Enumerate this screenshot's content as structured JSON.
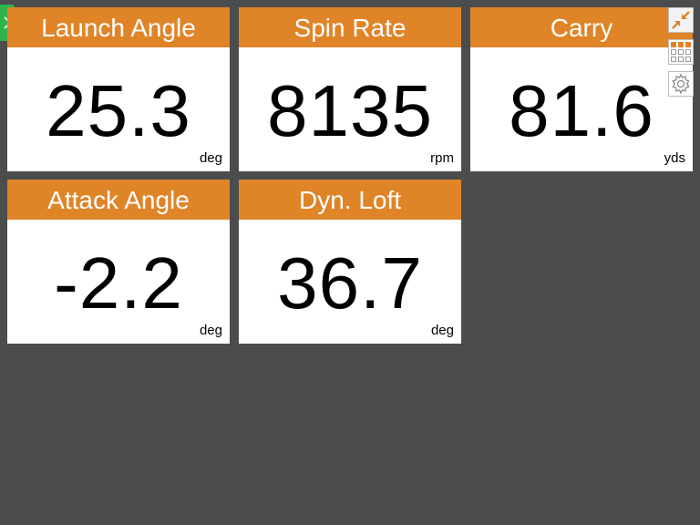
{
  "tiles": [
    {
      "title": "Launch Angle",
      "value": "25.3",
      "unit": "deg"
    },
    {
      "title": "Spin Rate",
      "value": "8135",
      "unit": "rpm"
    },
    {
      "title": "Carry",
      "value": "81.6",
      "unit": "yds"
    },
    {
      "title": "Attack Angle",
      "value": "-2.2",
      "unit": "deg"
    },
    {
      "title": "Dyn. Loft",
      "value": "36.7",
      "unit": "deg"
    }
  ],
  "colors": {
    "background": "#4b4c4e",
    "header": "#e08428",
    "tab": "#2fb34a"
  },
  "icons": {
    "expand_tab": "chevron-right-icon",
    "collapse": "collapse-arrows-icon",
    "grid": "grid-layout-icon",
    "settings": "gear-icon"
  }
}
